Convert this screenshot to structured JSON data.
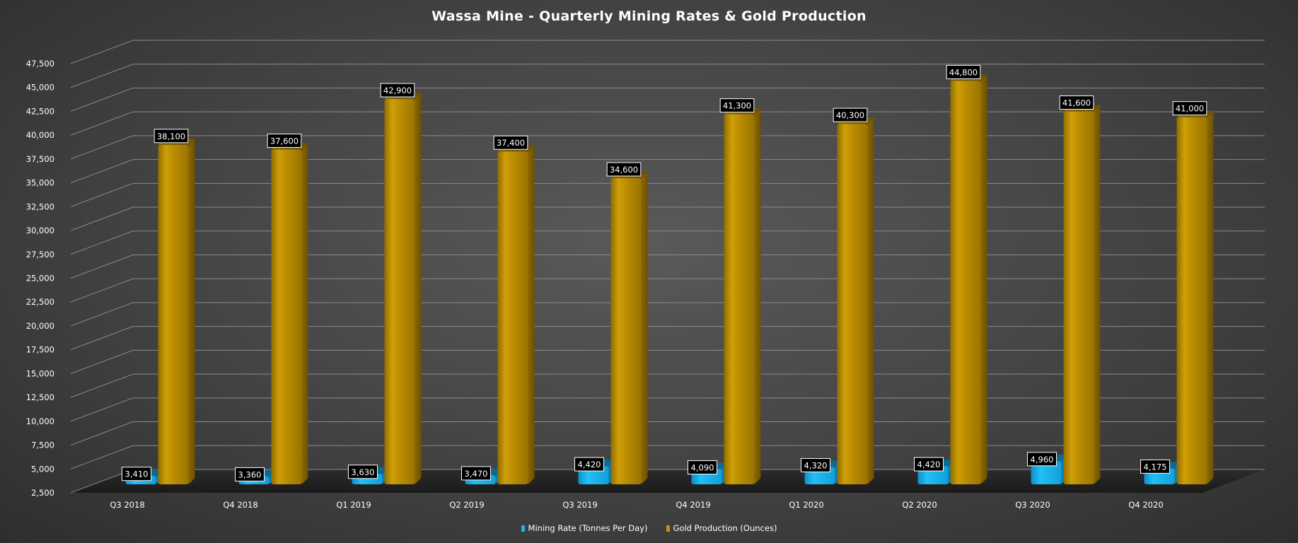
{
  "chart_data": {
    "type": "bar",
    "title": "Wassa Mine - Quarterly Mining Rates & Gold Production",
    "categories": [
      "Q3 2018",
      "Q4 2018",
      "Q1 2019",
      "Q2 2019",
      "Q3 2019",
      "Q4 2019",
      "Q1 2020",
      "Q2 2020",
      "Q3 2020",
      "Q4 2020"
    ],
    "series": [
      {
        "name": "Mining Rate (Tonnes Per Day)",
        "color": "#1fb3ee",
        "values": [
          3410,
          3360,
          3630,
          3470,
          4420,
          4090,
          4320,
          4420,
          4960,
          4175
        ],
        "labels": [
          "3,410",
          "3,360",
          "3,630",
          "3,470",
          "4,420",
          "4,090",
          "4,320",
          "4,420",
          "4,960",
          "4,175"
        ]
      },
      {
        "name": "Gold Production (Ounces)",
        "color": "#c49500",
        "values": [
          38100,
          37600,
          42900,
          37400,
          34600,
          41300,
          40300,
          44800,
          41600,
          41000
        ],
        "labels": [
          "38,100",
          "37,600",
          "42,900",
          "37,400",
          "34,600",
          "41,300",
          "40,300",
          "44,800",
          "41,600",
          "41,000"
        ]
      }
    ],
    "ylim": [
      2500,
      47500
    ],
    "yticks": [
      2500,
      5000,
      7500,
      10000,
      12500,
      15000,
      17500,
      20000,
      22500,
      25000,
      27500,
      30000,
      32500,
      35000,
      37500,
      40000,
      42500,
      45000,
      47500
    ],
    "ytick_labels": [
      "2,500",
      "5,000",
      "7,500",
      "10,000",
      "12,500",
      "15,000",
      "17,500",
      "20,000",
      "22,500",
      "25,000",
      "27,500",
      "30,000",
      "32,500",
      "35,000",
      "37,500",
      "40,000",
      "42,500",
      "45,000",
      "47,500"
    ],
    "xlabel": "",
    "ylabel": "",
    "grid": true,
    "legend_position": "bottom",
    "style": "3d-clustered-column"
  }
}
